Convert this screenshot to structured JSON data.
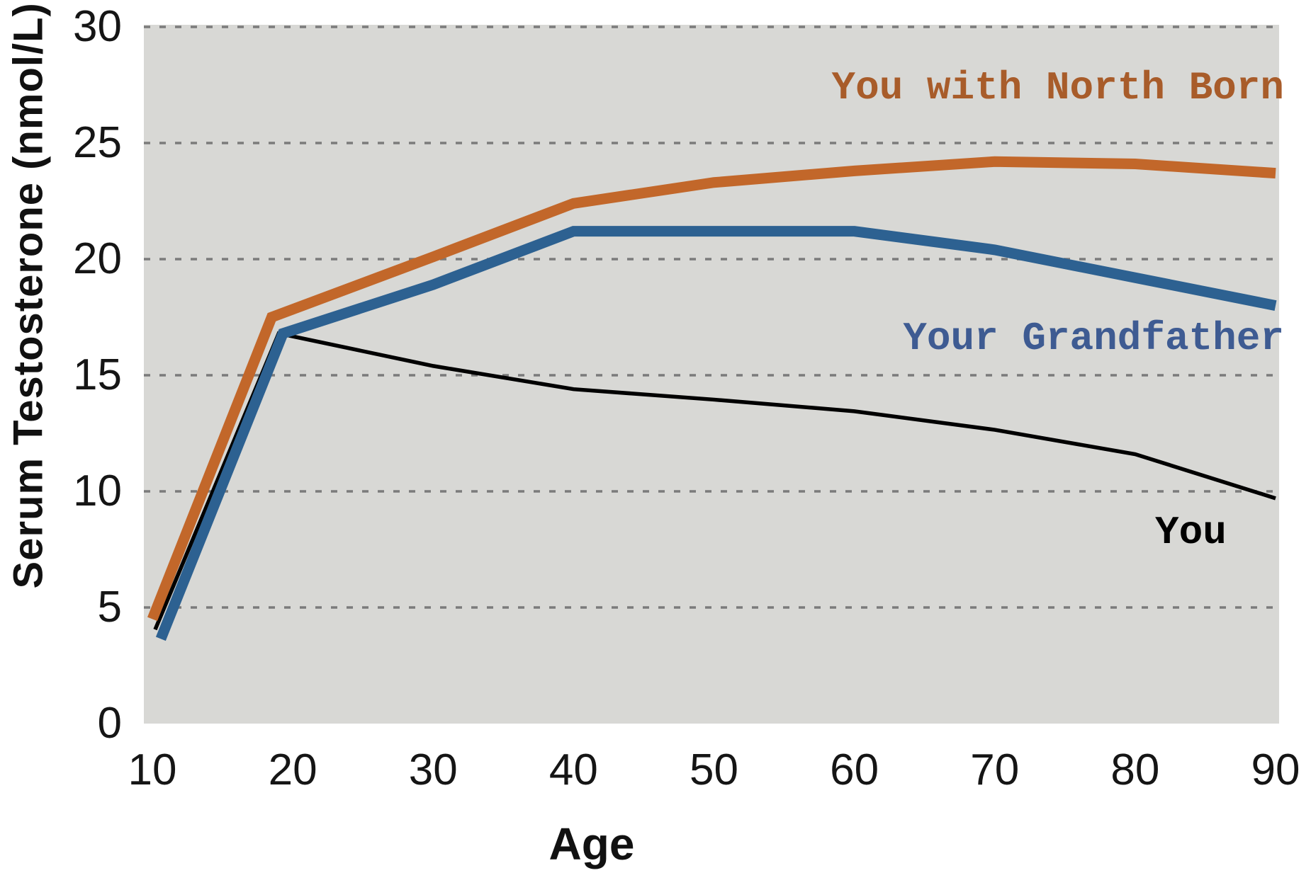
{
  "chart_data": {
    "type": "line",
    "title": "",
    "xlabel": "Age",
    "ylabel": "Serum Testosterone (nmol/L)",
    "xlim": [
      10,
      90
    ],
    "ylim": [
      0,
      30
    ],
    "x_ticks": [
      10,
      20,
      30,
      40,
      50,
      60,
      70,
      80,
      90
    ],
    "y_ticks": [
      0,
      5,
      10,
      15,
      20,
      25,
      30
    ],
    "grid": {
      "style": "dashed",
      "values": [
        5,
        10,
        15,
        20,
        25,
        30
      ],
      "color": "#7b7b7b"
    },
    "plot_background": "#d8d8d5",
    "legend_position": "inline-annotations",
    "series": [
      {
        "name": "You with North Born",
        "color": "#c2672a",
        "label_color": "#a85c2a",
        "line_width": 15,
        "z": 2,
        "x": [
          10,
          18.5,
          30,
          40,
          50,
          60,
          70,
          80,
          90
        ],
        "y": [
          4.5,
          17.5,
          20.1,
          22.4,
          23.3,
          23.8,
          24.2,
          24.1,
          23.7
        ]
      },
      {
        "name": "Your Grandfather",
        "color": "#2d6191",
        "label_color": "#3e5b92",
        "line_width": 15,
        "z": 3,
        "x": [
          10.6,
          19.3,
          30,
          40,
          50,
          60,
          70,
          80,
          90
        ],
        "y": [
          3.65,
          16.8,
          18.9,
          21.2,
          21.2,
          21.2,
          20.4,
          19.2,
          18.0
        ]
      },
      {
        "name": "You",
        "color": "#000000",
        "label_color": "#000000",
        "line_width": 5.5,
        "z": 1,
        "x": [
          10.2,
          19,
          30,
          40,
          50,
          60,
          70,
          80,
          90
        ],
        "y": [
          4.05,
          16.8,
          15.4,
          14.4,
          13.95,
          13.45,
          12.65,
          11.6,
          9.7
        ]
      }
    ]
  }
}
